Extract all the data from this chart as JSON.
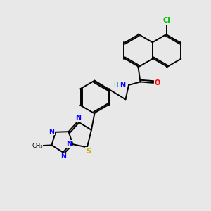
{
  "background_color": "#e8e8e8",
  "bond_color": "#000000",
  "atom_colors": {
    "Cl": "#00bb00",
    "N": "#0000ff",
    "O": "#ff0000",
    "S": "#ccaa00",
    "H": "#4488aa",
    "C": "#000000"
  }
}
